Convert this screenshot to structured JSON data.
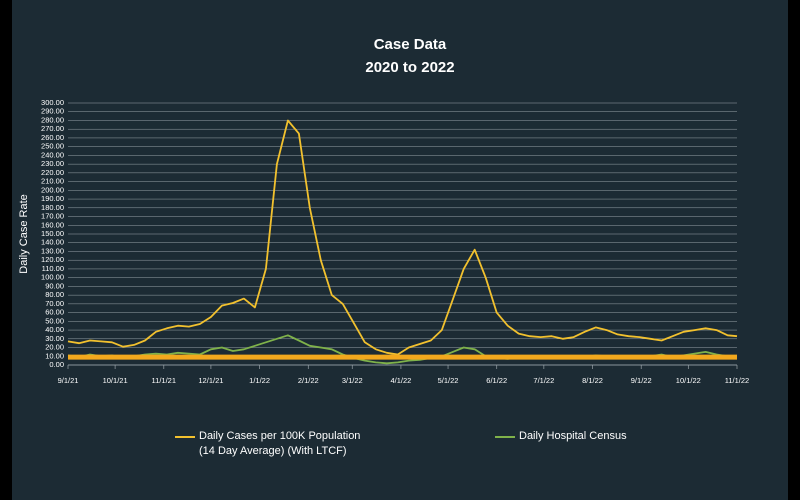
{
  "chart_data": {
    "type": "line",
    "title": "Case Data",
    "subtitle": "2020 to 2022",
    "y_label": "Daily Case Rate",
    "x": [
      "9/1/21",
      "9/8/21",
      "9/15/21",
      "9/22/21",
      "9/29/21",
      "10/6/21",
      "10/13/21",
      "10/20/21",
      "10/27/21",
      "11/3/21",
      "11/10/21",
      "11/17/21",
      "11/24/21",
      "12/1/21",
      "12/8/21",
      "12/15/21",
      "12/22/21",
      "12/29/21",
      "1/5/22",
      "1/12/22",
      "1/19/22",
      "1/26/22",
      "2/2/22",
      "2/9/22",
      "2/16/22",
      "2/23/22",
      "3/2/22",
      "3/9/22",
      "3/16/22",
      "3/23/22",
      "3/30/22",
      "4/6/22",
      "4/13/22",
      "4/20/22",
      "4/27/22",
      "5/4/22",
      "5/11/22",
      "5/18/22",
      "5/25/22",
      "6/1/22",
      "6/8/22",
      "6/15/22",
      "6/22/22",
      "6/29/22",
      "7/6/22",
      "7/13/22",
      "7/20/22",
      "7/27/22",
      "8/3/22",
      "8/10/22",
      "8/17/22",
      "8/24/22",
      "8/31/22",
      "9/7/22",
      "9/14/22",
      "9/21/22",
      "9/28/22",
      "10/5/22",
      "10/12/22",
      "10/19/22",
      "10/26/22",
      "11/1/22"
    ],
    "series": [
      {
        "name": "Daily Cases per 100K Population (14 Day Average) (With LTCF)",
        "color": "#f2c12e",
        "values": [
          27,
          25,
          28,
          27,
          26,
          21,
          23,
          28,
          38,
          42,
          45,
          44,
          47,
          55,
          68,
          71,
          76,
          66,
          110,
          230,
          280,
          265,
          180,
          120,
          80,
          70,
          48,
          26,
          18,
          14,
          12,
          20,
          24,
          28,
          40,
          75,
          110,
          132,
          100,
          60,
          45,
          36,
          33,
          32,
          33,
          30,
          32,
          38,
          43,
          40,
          35,
          33,
          32,
          30,
          28,
          33,
          38,
          40,
          42,
          40,
          34,
          33
        ]
      },
      {
        "name": "Daily Hospital Census",
        "color": "#7fb24a",
        "values": [
          11,
          9,
          12,
          10,
          11,
          8,
          10,
          12,
          13,
          12,
          14,
          13,
          12,
          18,
          20,
          16,
          18,
          22,
          26,
          30,
          34,
          28,
          22,
          20,
          18,
          12,
          8,
          5,
          3,
          2,
          3,
          5,
          6,
          8,
          10,
          15,
          20,
          18,
          10,
          8,
          7,
          9,
          8,
          10,
          9,
          8,
          10,
          9,
          11,
          10,
          9,
          10,
          8,
          10,
          12,
          9,
          11,
          13,
          15,
          12,
          10,
          9
        ]
      }
    ],
    "reference_line": {
      "value": 9,
      "color": "#f2a81d"
    },
    "ylim": [
      0,
      300
    ],
    "yticks": [
      {
        "value": 0,
        "label": "0.00"
      },
      {
        "value": 10,
        "label": "10.00"
      },
      {
        "value": 20,
        "label": "20.00"
      },
      {
        "value": 30,
        "label": "30.00"
      },
      {
        "value": 40,
        "label": "40.00"
      },
      {
        "value": 50,
        "label": "50.00"
      },
      {
        "value": 60,
        "label": "60.00"
      },
      {
        "value": 70,
        "label": "70.00"
      },
      {
        "value": 80,
        "label": "80.00"
      },
      {
        "value": 90,
        "label": "90.00"
      },
      {
        "value": 100,
        "label": "100.00"
      },
      {
        "value": 110,
        "label": "110.00"
      },
      {
        "value": 120,
        "label": "120.00"
      },
      {
        "value": 130,
        "label": "130.00"
      },
      {
        "value": 140,
        "label": "140.00"
      },
      {
        "value": 150,
        "label": "150.00"
      },
      {
        "value": 160,
        "label": "160.00"
      },
      {
        "value": 170,
        "label": "170.00"
      },
      {
        "value": 180,
        "label": "180.00"
      },
      {
        "value": 190,
        "label": "190.00"
      },
      {
        "value": 200,
        "label": "200.00"
      },
      {
        "value": 210,
        "label": "210.00"
      },
      {
        "value": 220,
        "label": "220.00"
      },
      {
        "value": 230,
        "label": "230.00"
      },
      {
        "value": 240,
        "label": "240.00"
      },
      {
        "value": 250,
        "label": "250.00"
      },
      {
        "value": 260,
        "label": "260.00"
      },
      {
        "value": 270,
        "label": "270.00"
      },
      {
        "value": 280,
        "label": "280.00"
      },
      {
        "value": 290,
        "label": "290.00"
      },
      {
        "value": 300,
        "label": "300.00"
      }
    ],
    "xlim": [
      "9/1/21",
      "11/1/22"
    ],
    "xticks": [
      "9/1/21",
      "10/1/21",
      "11/1/21",
      "12/1/21",
      "1/1/22",
      "2/1/22",
      "3/1/22",
      "4/1/22",
      "5/1/22",
      "6/1/22",
      "7/1/22",
      "8/1/22",
      "9/1/22",
      "10/1/22",
      "11/1/22"
    ],
    "grid": true,
    "legend": "bottom"
  }
}
